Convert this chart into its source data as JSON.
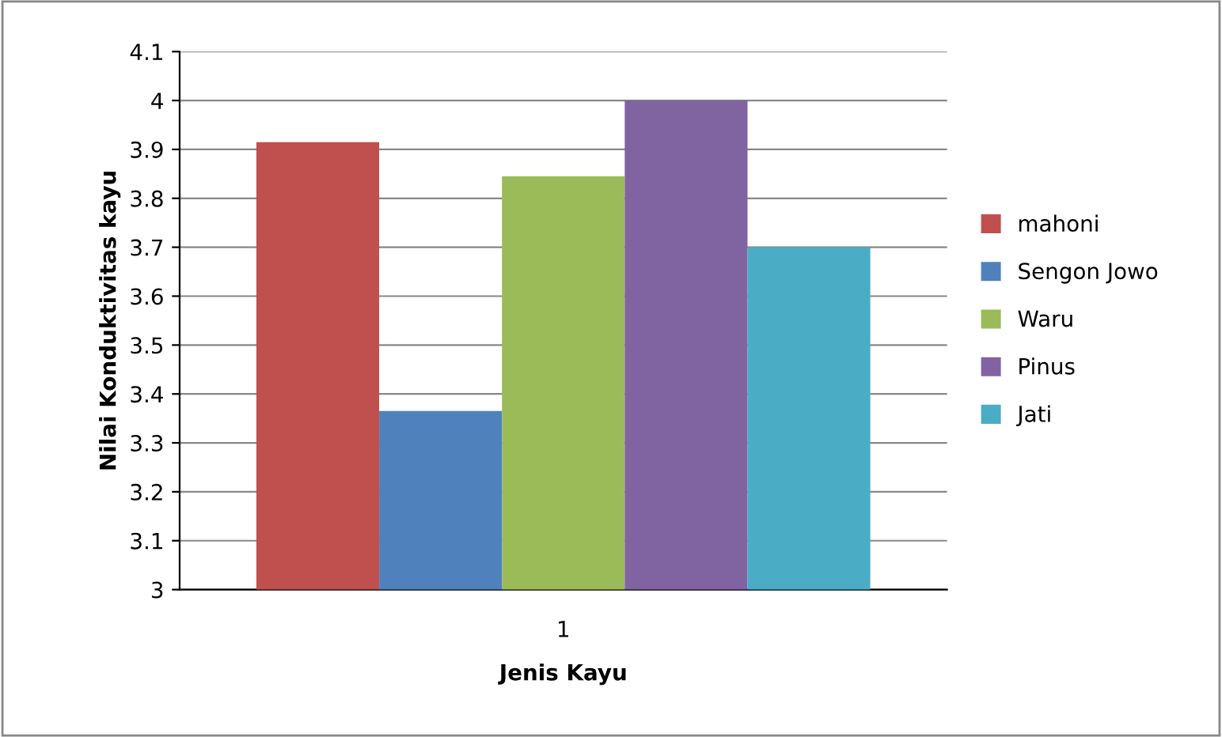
{
  "chart_data": {
    "type": "bar",
    "xlabel": "Jenis Kayu",
    "ylabel": "Nilai Konduktivitas kayu",
    "categories": [
      "1"
    ],
    "series": [
      {
        "name": "mahoni",
        "color": "#c0504d",
        "values": [
          3.915
        ]
      },
      {
        "name": "Sengon Jowo",
        "color": "#4f81bd",
        "values": [
          3.365
        ]
      },
      {
        "name": "Waru",
        "color": "#9bbb59",
        "values": [
          3.845
        ]
      },
      {
        "name": "Pinus",
        "color": "#8064a2",
        "values": [
          4.0
        ]
      },
      {
        "name": "Jati",
        "color": "#4bacc6",
        "values": [
          3.7
        ]
      }
    ],
    "ylim": [
      3,
      4.1
    ],
    "yticks": [
      3,
      3.1,
      3.2,
      3.3,
      3.4,
      3.5,
      3.6,
      3.7,
      3.8,
      3.9,
      4,
      4.1
    ],
    "grid": "y",
    "legend": "right"
  }
}
